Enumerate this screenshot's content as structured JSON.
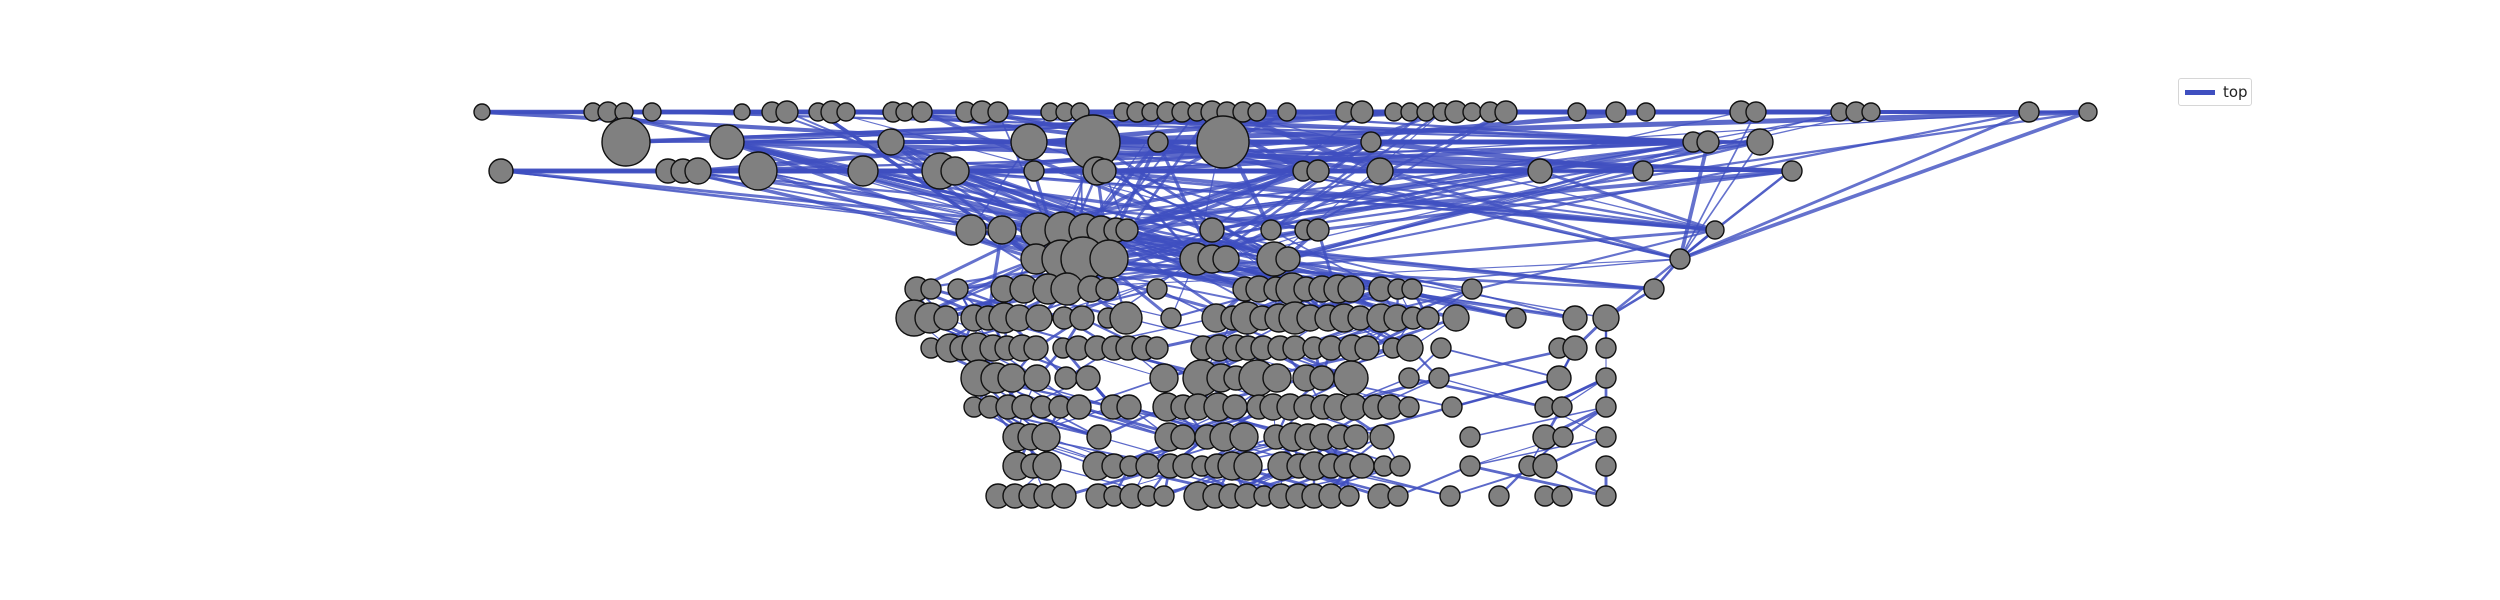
{
  "legend": {
    "label": "top",
    "color": "#3f4fc0"
  },
  "colors": {
    "node_fill": "#808080",
    "node_stroke": "#111111",
    "edge": "#3f4fc0"
  },
  "layer_rows": 14
}
